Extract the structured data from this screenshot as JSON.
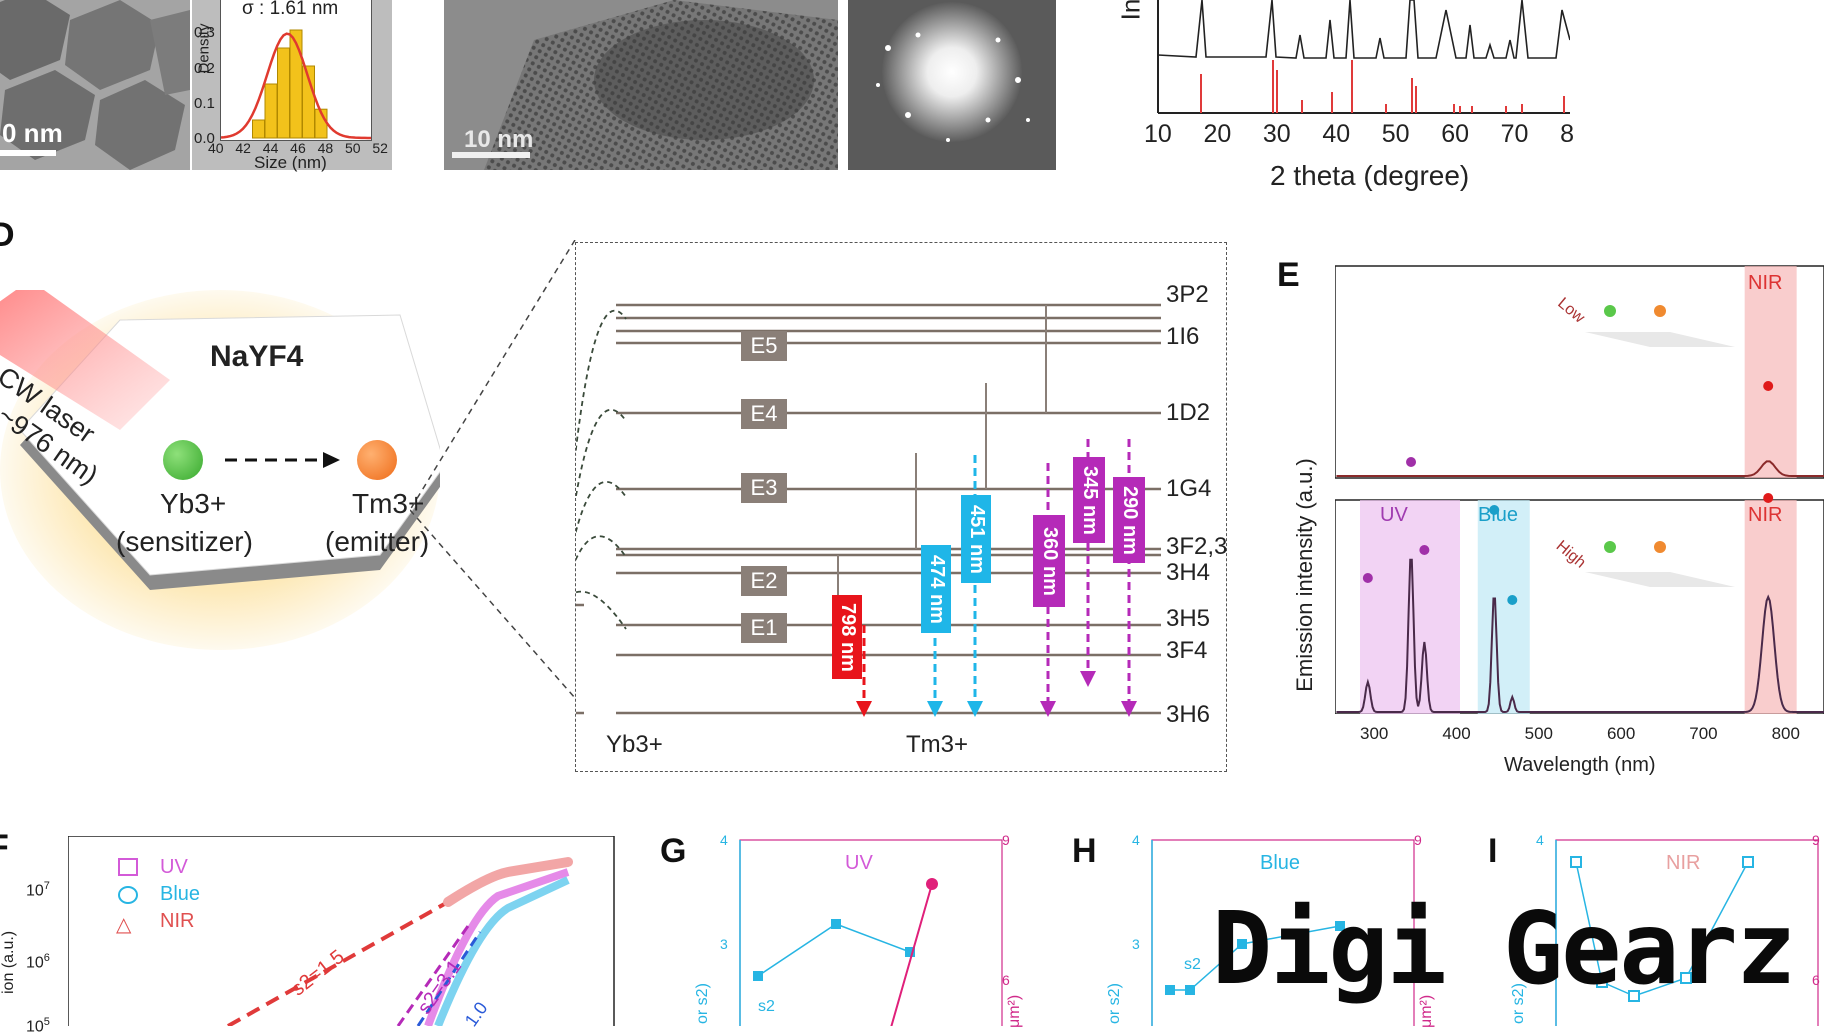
{
  "panel_letters": {
    "D": "D",
    "E": "E",
    "F": "F",
    "G": "G",
    "H": "H",
    "I": "I"
  },
  "panelA": {
    "scale_label": "0 nm",
    "hist": {
      "sigma": "σ : 1.61 nm",
      "ylabel": "Density",
      "xlabel": "Size (nm)",
      "yticks": [
        "0.3",
        "0.2",
        "0.1",
        "0.0"
      ],
      "xticks": [
        "40",
        "42",
        "44",
        "46",
        "48",
        "50",
        "52"
      ],
      "bar_centers": [
        43,
        44,
        45,
        46,
        47,
        48
      ],
      "bar_values": [
        0.05,
        0.15,
        0.25,
        0.3,
        0.2,
        0.08
      ],
      "bar_color": "#f2c21b",
      "fit_color": "#e03a2f"
    }
  },
  "panelB": {
    "scale_label": "10 nm"
  },
  "panelC": {
    "ylabel": "In",
    "xlabel": "2 theta (degree)",
    "xticks": [
      "10",
      "20",
      "30",
      "40",
      "50",
      "60",
      "70",
      "8"
    ]
  },
  "panelD": {
    "crystal": "NaYF4",
    "laser": "CW laser (λ~976 nm)",
    "sensitizer_ion": "Yb3+",
    "sensitizer_role": "(sensitizer)",
    "emitter_ion": "Tm3+",
    "emitter_role": "(emitter)",
    "levels": [
      "3P2",
      "1I6",
      "1D2",
      "1G4",
      "3F2,3",
      "3H4",
      "3H5",
      "3F4",
      "3H6"
    ],
    "yb_label": "Yb3+",
    "tm_label": "Tm3+",
    "E_labels": [
      "E5",
      "E4",
      "E3",
      "E2",
      "E1"
    ],
    "emissions": [
      {
        "label": "798 nm",
        "color": "#e8141b"
      },
      {
        "label": "474 nm",
        "color": "#1fb6e8"
      },
      {
        "label": "451 nm",
        "color": "#1fb6e8"
      },
      {
        "label": "360 nm",
        "color": "#b52ab8"
      },
      {
        "label": "345 nm",
        "color": "#b52ab8"
      },
      {
        "label": "290 nm",
        "color": "#b52ab8"
      }
    ]
  },
  "panelE": {
    "ylabel": "Emission intensity (a.u.)",
    "xlabel": "Wavelength (nm)",
    "xticks": [
      "300",
      "400",
      "500",
      "600",
      "700",
      "800"
    ],
    "top_band": "NIR",
    "top_power": "Low",
    "bands": [
      "UV",
      "Blue",
      "NIR"
    ],
    "bottom_power": "High"
  },
  "panelF": {
    "legend": [
      "UV",
      "Blue",
      "NIR"
    ],
    "yticks": [
      "10",
      "10",
      "10"
    ],
    "ytick_exps": [
      "7",
      "6",
      "5"
    ],
    "slope_nir": "s2=1.5",
    "slope_uv": "s2=3.1",
    "slope_blue": "1.0",
    "ylabel": "ion (a.u.)"
  },
  "panelG": {
    "title": "UV",
    "left_ticks": [
      "4",
      "3"
    ],
    "right_ticks": [
      "9",
      "6"
    ],
    "s_label": "s2",
    "left_axis": "or s2)",
    "right_axis": "μm²)"
  },
  "panelH": {
    "title": "Blue",
    "left_ticks": [
      "4",
      "3"
    ],
    "right_ticks": [
      "9"
    ],
    "s_label": "s2",
    "left_axis": "or s2)",
    "right_axis": "μm²)"
  },
  "panelI": {
    "title": "NIR",
    "left_ticks": [
      "4"
    ],
    "right_ticks": [
      "9",
      "6"
    ],
    "left_axis": "or s2)"
  },
  "watermark": "Digi Gearz",
  "colors": {
    "uv": "#d35ad8",
    "blue": "#27b5e3",
    "nir": "#e05050",
    "level": "#7b6f66"
  }
}
